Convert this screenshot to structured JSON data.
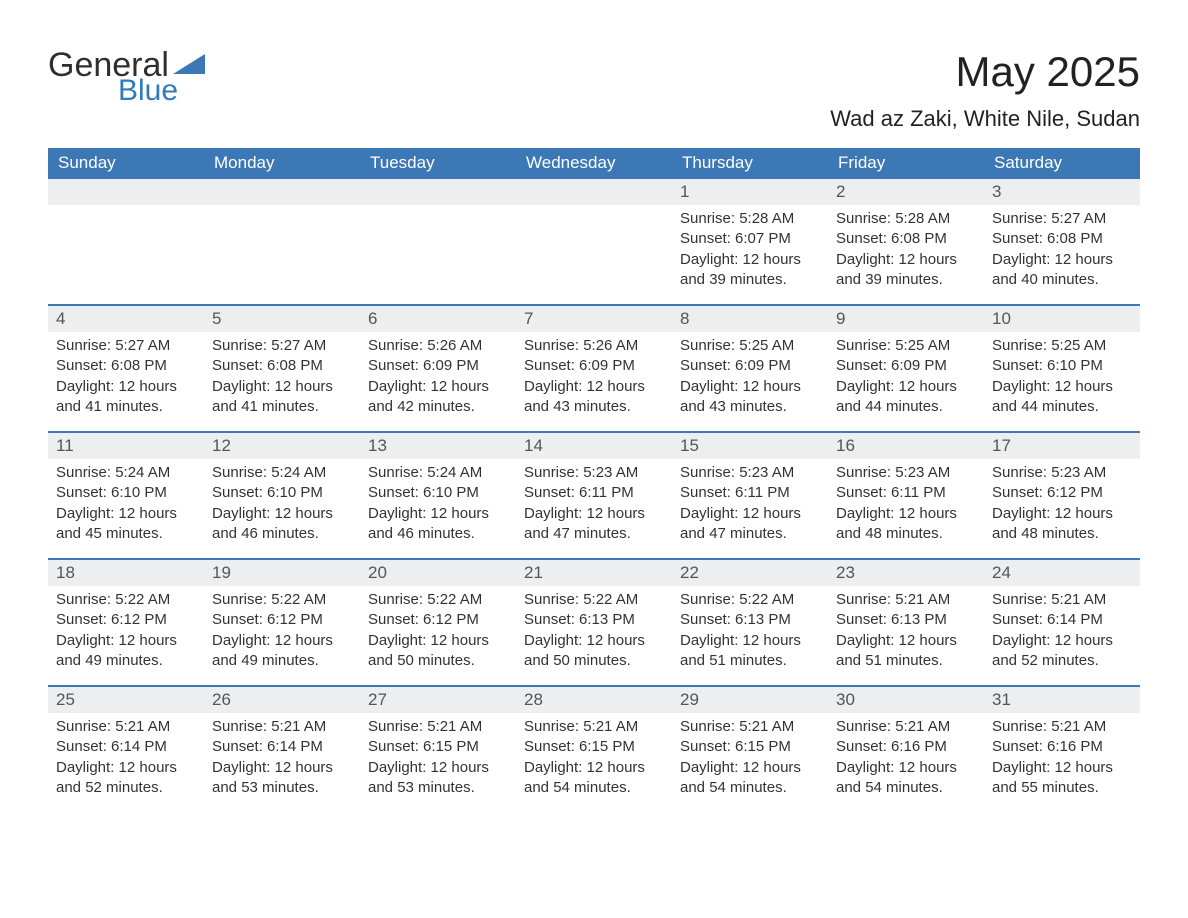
{
  "logo": {
    "textGeneral": "General",
    "textBlue": "Blue",
    "triangleColor": "#3b78b5"
  },
  "header": {
    "title": "May 2025",
    "subtitle": "Wad az Zaki, White Nile, Sudan"
  },
  "style": {
    "headerBg": "#3b78b5",
    "headerText": "#ffffff",
    "daynumBg": "#eceeef",
    "daynumText": "#555555",
    "bodyText": "#333333",
    "weekBorder": "#3b78b5",
    "pageBg": "#ffffff",
    "titleFontSize": 42,
    "subtitleFontSize": 22,
    "dayheadFontSize": 17,
    "daynumFontSize": 17,
    "cellFontSize": 15
  },
  "dayHeaders": [
    "Sunday",
    "Monday",
    "Tuesday",
    "Wednesday",
    "Thursday",
    "Friday",
    "Saturday"
  ],
  "weeks": [
    [
      {
        "day": "",
        "lines": [
          "",
          "",
          "",
          ""
        ]
      },
      {
        "day": "",
        "lines": [
          "",
          "",
          "",
          ""
        ]
      },
      {
        "day": "",
        "lines": [
          "",
          "",
          "",
          ""
        ]
      },
      {
        "day": "",
        "lines": [
          "",
          "",
          "",
          ""
        ]
      },
      {
        "day": "1",
        "lines": [
          "Sunrise: 5:28 AM",
          "Sunset: 6:07 PM",
          "Daylight: 12 hours",
          "and 39 minutes."
        ]
      },
      {
        "day": "2",
        "lines": [
          "Sunrise: 5:28 AM",
          "Sunset: 6:08 PM",
          "Daylight: 12 hours",
          "and 39 minutes."
        ]
      },
      {
        "day": "3",
        "lines": [
          "Sunrise: 5:27 AM",
          "Sunset: 6:08 PM",
          "Daylight: 12 hours",
          "and 40 minutes."
        ]
      }
    ],
    [
      {
        "day": "4",
        "lines": [
          "Sunrise: 5:27 AM",
          "Sunset: 6:08 PM",
          "Daylight: 12 hours",
          "and 41 minutes."
        ]
      },
      {
        "day": "5",
        "lines": [
          "Sunrise: 5:27 AM",
          "Sunset: 6:08 PM",
          "Daylight: 12 hours",
          "and 41 minutes."
        ]
      },
      {
        "day": "6",
        "lines": [
          "Sunrise: 5:26 AM",
          "Sunset: 6:09 PM",
          "Daylight: 12 hours",
          "and 42 minutes."
        ]
      },
      {
        "day": "7",
        "lines": [
          "Sunrise: 5:26 AM",
          "Sunset: 6:09 PM",
          "Daylight: 12 hours",
          "and 43 minutes."
        ]
      },
      {
        "day": "8",
        "lines": [
          "Sunrise: 5:25 AM",
          "Sunset: 6:09 PM",
          "Daylight: 12 hours",
          "and 43 minutes."
        ]
      },
      {
        "day": "9",
        "lines": [
          "Sunrise: 5:25 AM",
          "Sunset: 6:09 PM",
          "Daylight: 12 hours",
          "and 44 minutes."
        ]
      },
      {
        "day": "10",
        "lines": [
          "Sunrise: 5:25 AM",
          "Sunset: 6:10 PM",
          "Daylight: 12 hours",
          "and 44 minutes."
        ]
      }
    ],
    [
      {
        "day": "11",
        "lines": [
          "Sunrise: 5:24 AM",
          "Sunset: 6:10 PM",
          "Daylight: 12 hours",
          "and 45 minutes."
        ]
      },
      {
        "day": "12",
        "lines": [
          "Sunrise: 5:24 AM",
          "Sunset: 6:10 PM",
          "Daylight: 12 hours",
          "and 46 minutes."
        ]
      },
      {
        "day": "13",
        "lines": [
          "Sunrise: 5:24 AM",
          "Sunset: 6:10 PM",
          "Daylight: 12 hours",
          "and 46 minutes."
        ]
      },
      {
        "day": "14",
        "lines": [
          "Sunrise: 5:23 AM",
          "Sunset: 6:11 PM",
          "Daylight: 12 hours",
          "and 47 minutes."
        ]
      },
      {
        "day": "15",
        "lines": [
          "Sunrise: 5:23 AM",
          "Sunset: 6:11 PM",
          "Daylight: 12 hours",
          "and 47 minutes."
        ]
      },
      {
        "day": "16",
        "lines": [
          "Sunrise: 5:23 AM",
          "Sunset: 6:11 PM",
          "Daylight: 12 hours",
          "and 48 minutes."
        ]
      },
      {
        "day": "17",
        "lines": [
          "Sunrise: 5:23 AM",
          "Sunset: 6:12 PM",
          "Daylight: 12 hours",
          "and 48 minutes."
        ]
      }
    ],
    [
      {
        "day": "18",
        "lines": [
          "Sunrise: 5:22 AM",
          "Sunset: 6:12 PM",
          "Daylight: 12 hours",
          "and 49 minutes."
        ]
      },
      {
        "day": "19",
        "lines": [
          "Sunrise: 5:22 AM",
          "Sunset: 6:12 PM",
          "Daylight: 12 hours",
          "and 49 minutes."
        ]
      },
      {
        "day": "20",
        "lines": [
          "Sunrise: 5:22 AM",
          "Sunset: 6:12 PM",
          "Daylight: 12 hours",
          "and 50 minutes."
        ]
      },
      {
        "day": "21",
        "lines": [
          "Sunrise: 5:22 AM",
          "Sunset: 6:13 PM",
          "Daylight: 12 hours",
          "and 50 minutes."
        ]
      },
      {
        "day": "22",
        "lines": [
          "Sunrise: 5:22 AM",
          "Sunset: 6:13 PM",
          "Daylight: 12 hours",
          "and 51 minutes."
        ]
      },
      {
        "day": "23",
        "lines": [
          "Sunrise: 5:21 AM",
          "Sunset: 6:13 PM",
          "Daylight: 12 hours",
          "and 51 minutes."
        ]
      },
      {
        "day": "24",
        "lines": [
          "Sunrise: 5:21 AM",
          "Sunset: 6:14 PM",
          "Daylight: 12 hours",
          "and 52 minutes."
        ]
      }
    ],
    [
      {
        "day": "25",
        "lines": [
          "Sunrise: 5:21 AM",
          "Sunset: 6:14 PM",
          "Daylight: 12 hours",
          "and 52 minutes."
        ]
      },
      {
        "day": "26",
        "lines": [
          "Sunrise: 5:21 AM",
          "Sunset: 6:14 PM",
          "Daylight: 12 hours",
          "and 53 minutes."
        ]
      },
      {
        "day": "27",
        "lines": [
          "Sunrise: 5:21 AM",
          "Sunset: 6:15 PM",
          "Daylight: 12 hours",
          "and 53 minutes."
        ]
      },
      {
        "day": "28",
        "lines": [
          "Sunrise: 5:21 AM",
          "Sunset: 6:15 PM",
          "Daylight: 12 hours",
          "and 54 minutes."
        ]
      },
      {
        "day": "29",
        "lines": [
          "Sunrise: 5:21 AM",
          "Sunset: 6:15 PM",
          "Daylight: 12 hours",
          "and 54 minutes."
        ]
      },
      {
        "day": "30",
        "lines": [
          "Sunrise: 5:21 AM",
          "Sunset: 6:16 PM",
          "Daylight: 12 hours",
          "and 54 minutes."
        ]
      },
      {
        "day": "31",
        "lines": [
          "Sunrise: 5:21 AM",
          "Sunset: 6:16 PM",
          "Daylight: 12 hours",
          "and 55 minutes."
        ]
      }
    ]
  ]
}
